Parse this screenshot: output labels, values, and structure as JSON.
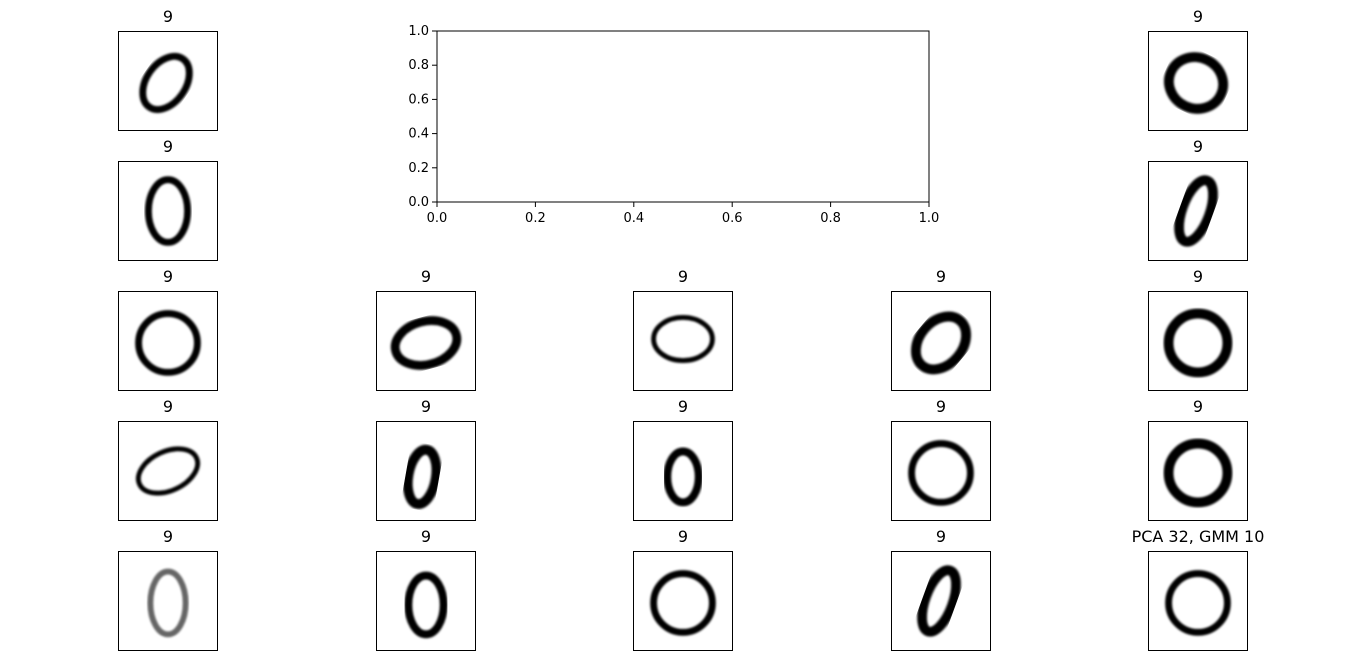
{
  "figure": {
    "panels": [
      {
        "title": "9",
        "digit": "tilted-loop"
      },
      {
        "title": "9",
        "digit": "blob-loop"
      },
      {
        "title": "9",
        "digit": "upright-loop"
      },
      {
        "title": "9",
        "digit": "narrow-tilted"
      },
      {
        "title": "9",
        "digit": "round-loop"
      },
      {
        "title": "9",
        "digit": "flat-thick"
      },
      {
        "title": "9",
        "digit": "thin-oval"
      },
      {
        "title": "9",
        "digit": "tilted-thick"
      },
      {
        "title": "9",
        "digit": "round-thick"
      },
      {
        "title": "9",
        "digit": "flat-oval"
      },
      {
        "title": "9",
        "digit": "narrow-thick"
      },
      {
        "title": "9",
        "digit": "open-loop"
      },
      {
        "title": "9",
        "digit": "round-loop"
      },
      {
        "title": "9",
        "digit": "round-thick"
      },
      {
        "title": "9",
        "digit": "light-oval"
      },
      {
        "title": "9",
        "digit": "teardrop"
      },
      {
        "title": "9",
        "digit": "round-loop"
      },
      {
        "title": "9",
        "digit": "narrow-tilted"
      },
      {
        "title": "PCA 32, GMM 10",
        "digit": "round-loop"
      }
    ]
  },
  "chart_data": {
    "type": "scatter",
    "title": "",
    "xlabel": "",
    "ylabel": "",
    "xlim": [
      0,
      1
    ],
    "ylim": [
      0,
      1
    ],
    "x_ticks": [
      "0.0",
      "0.2",
      "0.4",
      "0.6",
      "0.8",
      "1.0"
    ],
    "y_ticks": [
      "0.0",
      "0.2",
      "0.4",
      "0.6",
      "0.8",
      "1.0"
    ],
    "series": [],
    "grid": false
  }
}
